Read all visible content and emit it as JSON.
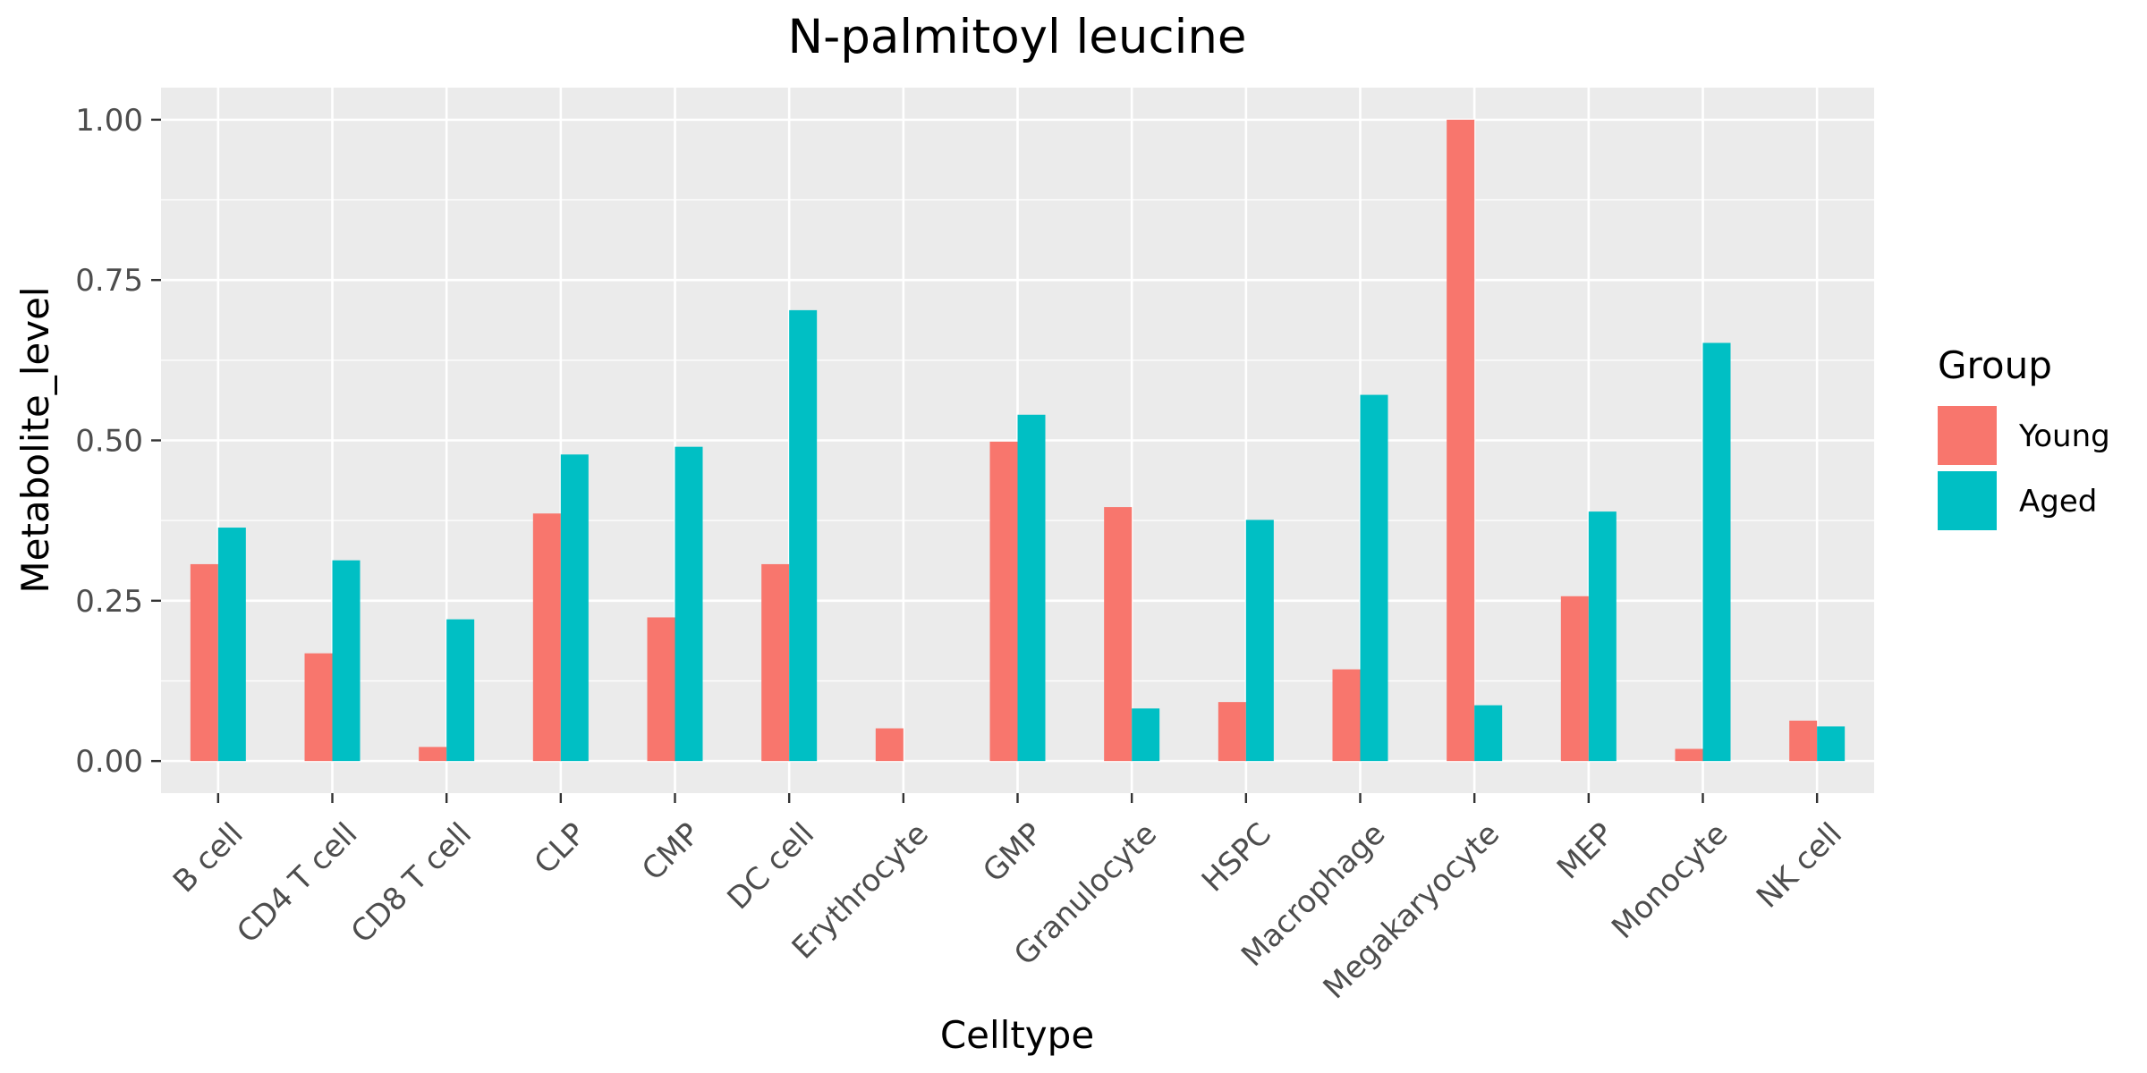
{
  "chart_data": {
    "type": "bar",
    "title": "N-palmitoyl leucine",
    "xlabel": "Celltype",
    "ylabel": "Metabolite_level",
    "ylim": [
      -0.05,
      1.05
    ],
    "yticks": [
      "0.00",
      "0.25",
      "0.50",
      "0.75",
      "1.00"
    ],
    "ytick_values": [
      0,
      0.25,
      0.5,
      0.75,
      1.0
    ],
    "grid": true,
    "legend_title": "Group",
    "legend_position": "right",
    "categories": [
      "B cell",
      "CD4 T cell",
      "CD8 T cell",
      "CLP",
      "CMP",
      "DC cell",
      "Erythrocyte",
      "GMP",
      "Granulocyte",
      "HSPC",
      "Macrophage",
      "Megakaryocyte",
      "MEP",
      "Monocyte",
      "NK cell"
    ],
    "series": [
      {
        "name": "Young",
        "color": "#F8766D",
        "values": [
          0.307,
          0.168,
          0.022,
          0.386,
          0.224,
          0.307,
          0.051,
          0.498,
          0.396,
          0.092,
          0.143,
          1.0,
          0.257,
          0.019,
          0.063
        ]
      },
      {
        "name": "Aged",
        "color": "#00BFC4",
        "values": [
          0.364,
          0.313,
          0.221,
          0.478,
          0.49,
          0.703,
          null,
          0.54,
          0.082,
          0.376,
          0.571,
          0.087,
          0.389,
          0.652,
          0.054
        ]
      }
    ]
  }
}
